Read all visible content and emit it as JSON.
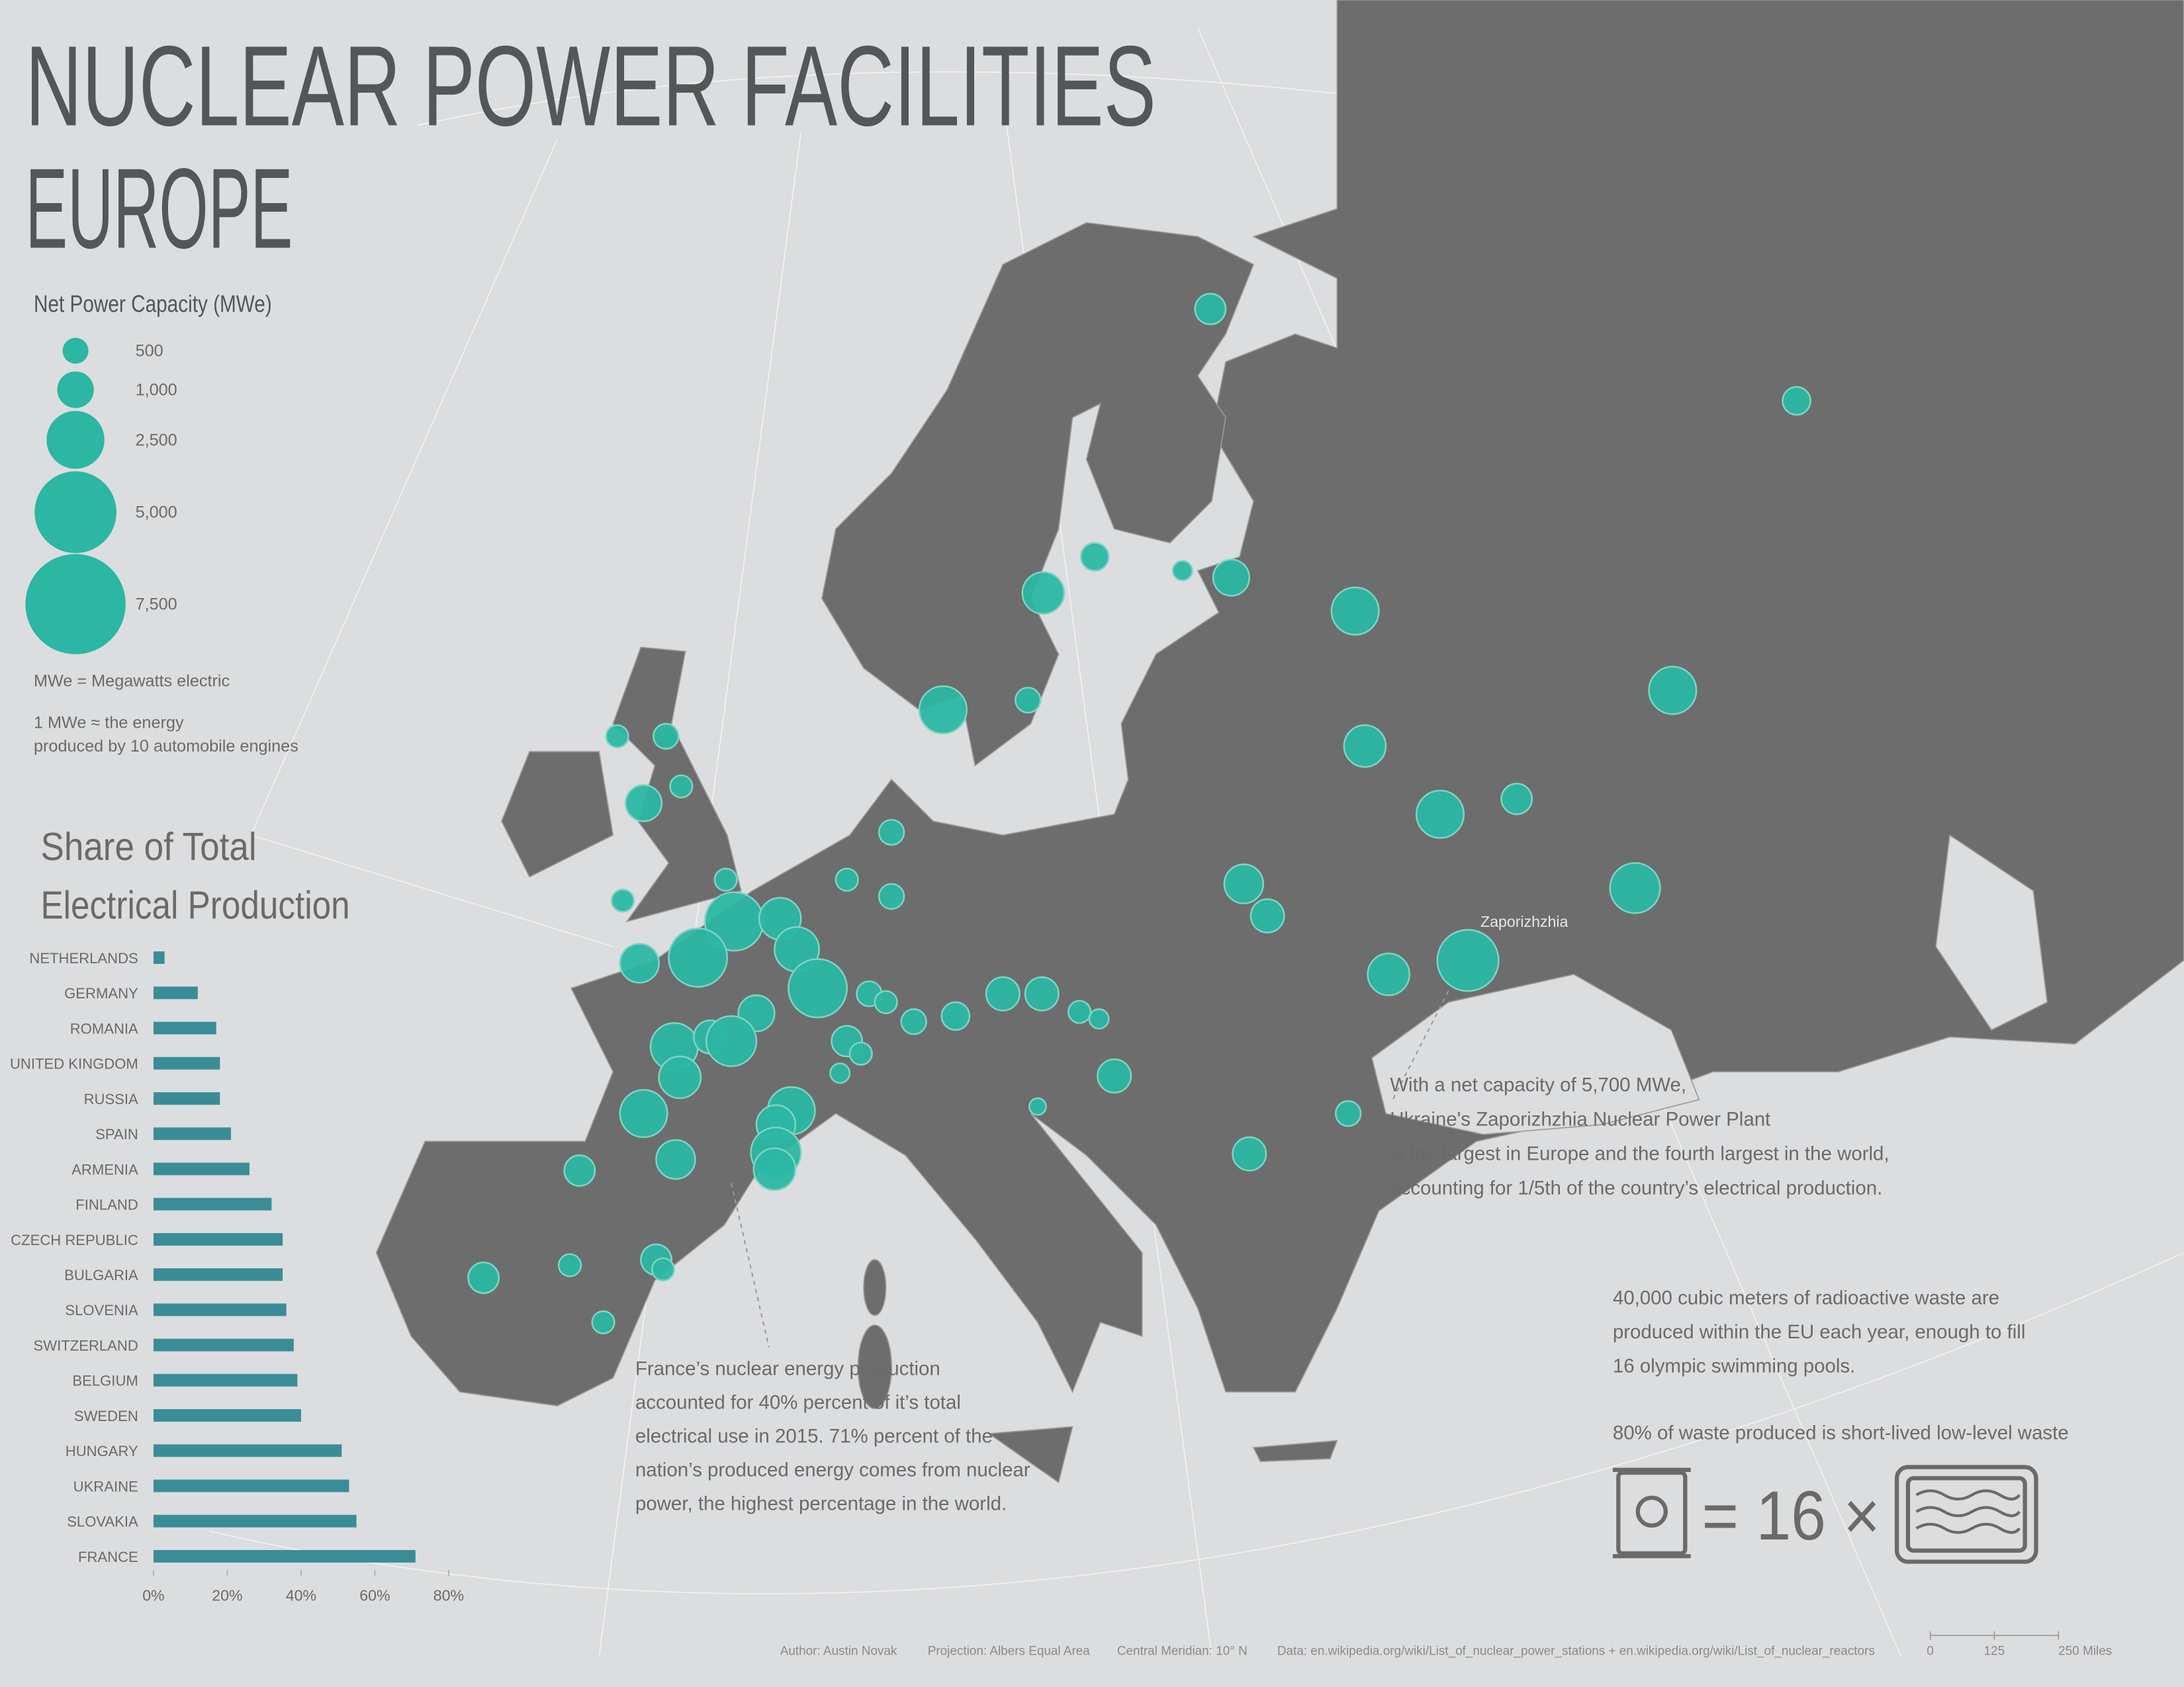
{
  "title": "NUCLEAR POWER FACILITIES",
  "subtitle": "EUROPE",
  "legend": {
    "title": "Net Power Capacity (MWe)",
    "sizes": [
      500,
      {
        "value": 1000,
        "label": "1,000"
      },
      {
        "value": 2500,
        "label": "2,500"
      },
      {
        "value": 5000,
        "label": "5,000"
      },
      {
        "value": 7500,
        "label": "7,500"
      }
    ],
    "notes": [
      "MWe = Megawatts electric",
      "1 MWe ≈ the energy",
      "produced by 10 automobile engines"
    ]
  },
  "map_label": "Zaporizhzhia",
  "annotations": {
    "ukraine": [
      "With a net capacity of 5,700 MWe,",
      "Ukraine's Zaporizhzhia Nuclear Power Plant",
      "is the largest in Europe and the fourth largest in the world,",
      "accounting for 1/5th of the country’s electrical production."
    ],
    "france": [
      "France’s nuclear energy production",
      "accounted for 40% percent of it’s total",
      "electrical use in 2015. 71% percent of the",
      "nation’s produced energy comes from nuclear",
      "power, the highest percentage in the world."
    ],
    "waste": [
      "40,000 cubic meters of radioactive waste are",
      "produced within the EU each year, enough to fill",
      "16 olympic swimming pools."
    ],
    "waste_share": "80% of waste produced is short-lived low-level waste",
    "equation": "= 16 ×"
  },
  "chart_data": {
    "type": "bar",
    "orientation": "horizontal",
    "title": [
      "Share of Total",
      "Electrical Production"
    ],
    "categories": [
      "NETHERLANDS",
      "GERMANY",
      "ROMANIA",
      "UNITED KINGDOM",
      "RUSSIA",
      "SPAIN",
      "ARMENIA",
      "FINLAND",
      "CZECH REPUBLIC",
      "BULGARIA",
      "SLOVENIA",
      "SWITZERLAND",
      "BELGIUM",
      "SWEDEN",
      "HUNGARY",
      "UKRAINE",
      "SLOVAKIA",
      "FRANCE"
    ],
    "values": [
      3,
      12,
      17,
      18,
      18,
      21,
      26,
      32,
      35,
      35,
      36,
      38,
      39,
      40,
      51,
      53,
      55,
      71
    ],
    "color": "#3a8d96",
    "xlim": [
      0,
      80
    ],
    "xticks": [
      {
        "value": 0,
        "label": "0%"
      },
      {
        "value": 20,
        "label": "20%"
      },
      {
        "value": 40,
        "label": "40%"
      },
      {
        "value": 60,
        "label": "60%"
      },
      {
        "value": 80,
        "label": "80%"
      }
    ]
  },
  "footer": [
    "Author: Austin Novak",
    "Projection: Albers Equal Area",
    "Central Meridian: 10° N",
    "Data: en.wikipedia.org/wiki/List_of_nuclear_power_stations + en.wikipedia.org/wiki/List_of_nuclear_reactors"
  ],
  "scale_bar": {
    "ticks": [
      0,
      125,
      {
        "value": 250,
        "label": "250 Miles"
      }
    ]
  }
}
